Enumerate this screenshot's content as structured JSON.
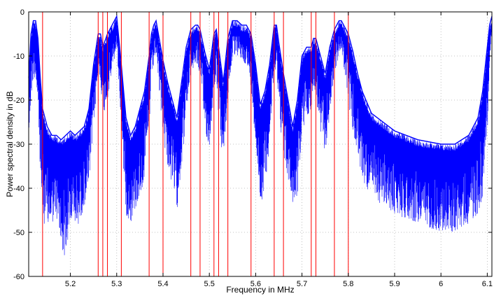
{
  "chart_data": {
    "type": "line",
    "title": "",
    "xlabel": "Frequency in MHz",
    "ylabel": "Power spectral density in dB",
    "xlim": [
      5.11,
      6.11
    ],
    "ylim": [
      -60,
      0
    ],
    "xticks": [
      5.2,
      5.3,
      5.4,
      5.5,
      5.6,
      5.7,
      5.8,
      5.9,
      6.0,
      6.1
    ],
    "xtick_labels": [
      "5.2",
      "5.3",
      "5.4",
      "5.5",
      "5.6",
      "5.7",
      "5.8",
      "5.9",
      "6",
      "6.1"
    ],
    "yticks": [
      0,
      -10,
      -20,
      -30,
      -40,
      -50,
      -60
    ],
    "ytick_labels": [
      "0",
      "-10",
      "-20",
      "-30",
      "-40",
      "-50",
      "-60"
    ],
    "grid": true,
    "series": [
      {
        "color": "#0000ff",
        "x": [
          5.11,
          5.115,
          5.12,
          5.125,
          5.13,
          5.135,
          5.14,
          5.15,
          5.16,
          5.17,
          5.18,
          5.19,
          5.2,
          5.21,
          5.22,
          5.23,
          5.24,
          5.25,
          5.26,
          5.265,
          5.27,
          5.28,
          5.29,
          5.3,
          5.31,
          5.32,
          5.33,
          5.34,
          5.35,
          5.36,
          5.37,
          5.375,
          5.38,
          5.385,
          5.39,
          5.4,
          5.41,
          5.42,
          5.43,
          5.44,
          5.45,
          5.46,
          5.47,
          5.475,
          5.48,
          5.49,
          5.5,
          5.51,
          5.515,
          5.52,
          5.53,
          5.54,
          5.55,
          5.56,
          5.57,
          5.58,
          5.59,
          5.6,
          5.61,
          5.62,
          5.63,
          5.64,
          5.645,
          5.65,
          5.66,
          5.67,
          5.68,
          5.69,
          5.7,
          5.71,
          5.72,
          5.725,
          5.73,
          5.74,
          5.75,
          5.76,
          5.77,
          5.78,
          5.785,
          5.79,
          5.8,
          5.81,
          5.82,
          5.83,
          5.85,
          5.9,
          5.95,
          6.0,
          6.03,
          6.06,
          6.08,
          6.09,
          6.1,
          6.105,
          6.11
        ],
        "y": [
          -15,
          -5,
          -2,
          -2,
          -6,
          -15,
          -22,
          -26,
          -28,
          -28,
          -29,
          -28,
          -27,
          -28,
          -27,
          -26,
          -22,
          -12,
          -5,
          -5,
          -8,
          -5,
          -3,
          -1,
          -12,
          -24,
          -28,
          -26,
          -22,
          -18,
          -10,
          -5,
          -3,
          -2,
          -5,
          -11,
          -16,
          -20,
          -24,
          -16,
          -8,
          -4,
          -3,
          -3,
          -4,
          -9,
          -13,
          -5,
          -4,
          -8,
          -16,
          -6,
          -2,
          -2,
          -3,
          -3,
          -5,
          -12,
          -21,
          -18,
          -12,
          -3,
          -3,
          -7,
          -14,
          -20,
          -26,
          -20,
          -10,
          -8,
          -8,
          -6,
          -6,
          -10,
          -14,
          -8,
          -4,
          -2,
          -2,
          -3,
          -5,
          -9,
          -14,
          -18,
          -23,
          -27,
          -29,
          -30,
          -30,
          -28,
          -24,
          -18,
          -8,
          -3,
          -1
        ],
        "noise_floor": [
          -30,
          -20,
          -15,
          -15,
          -22,
          -38,
          -47,
          -50,
          -48,
          -47,
          -54,
          -56,
          -48,
          -49,
          -48,
          -44,
          -40,
          -26,
          -15,
          -15,
          -24,
          -20,
          -14,
          -8,
          -26,
          -46,
          -48,
          -45,
          -42,
          -38,
          -27,
          -16,
          -12,
          -9,
          -16,
          -28,
          -35,
          -40,
          -45,
          -35,
          -24,
          -14,
          -12,
          -12,
          -15,
          -26,
          -32,
          -18,
          -14,
          -24,
          -35,
          -20,
          -10,
          -10,
          -11,
          -12,
          -17,
          -30,
          -44,
          -40,
          -30,
          -14,
          -12,
          -22,
          -33,
          -38,
          -44,
          -42,
          -28,
          -24,
          -22,
          -18,
          -20,
          -28,
          -32,
          -24,
          -14,
          -10,
          -9,
          -12,
          -20,
          -28,
          -33,
          -38,
          -42,
          -46,
          -48,
          -50,
          -50,
          -48,
          -46,
          -42,
          -28,
          -12,
          -4
        ]
      }
    ],
    "vlines": [
      5.14,
      5.26,
      5.27,
      5.28,
      5.31,
      5.37,
      5.4,
      5.46,
      5.48,
      5.51,
      5.52,
      5.54,
      5.59,
      5.64,
      5.66,
      5.72,
      5.73,
      5.77,
      5.8
    ],
    "vline_color": "#ff0000"
  }
}
